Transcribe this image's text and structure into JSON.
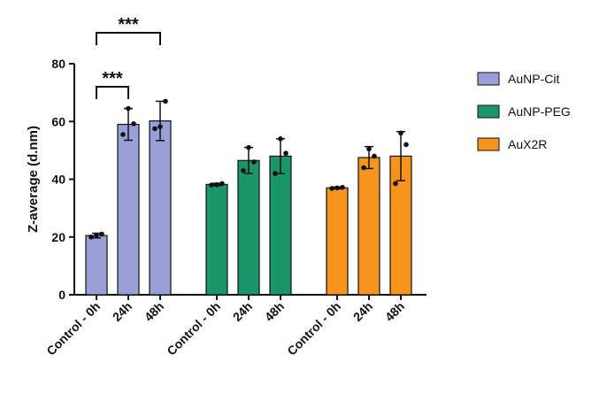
{
  "chart_data": {
    "type": "bar",
    "ylabel": "Z-average (d.nm)",
    "ylim": [
      0,
      80
    ],
    "yticks": [
      0,
      20,
      40,
      60,
      80
    ],
    "categories": [
      "Control - 0h",
      "24h",
      "48h"
    ],
    "groups": [
      {
        "name": "AuNP-Cit",
        "color": "#9b9fd8",
        "values": [
          20.5,
          59.0,
          60.2
        ],
        "errors": [
          0.8,
          5.5,
          6.8
        ],
        "points": [
          [
            20.0,
            21.0,
            20.6
          ],
          [
            55.5,
            59.2,
            64.5
          ],
          [
            57.5,
            67.0,
            58.2
          ]
        ]
      },
      {
        "name": "AuNP-PEG",
        "color": "#1b9668",
        "values": [
          38.2,
          46.5,
          48.0
        ],
        "errors": [
          0.4,
          4.5,
          6.0
        ],
        "points": [
          [
            38.0,
            38.5,
            38.1
          ],
          [
            43.0,
            46.0,
            51.0
          ],
          [
            42.0,
            49.0,
            54.0
          ]
        ]
      },
      {
        "name": "AuX2R",
        "color": "#f7941e",
        "values": [
          37.0,
          47.5,
          48.0
        ],
        "errors": [
          0.3,
          3.8,
          8.5
        ],
        "points": [
          [
            36.8,
            37.2,
            37.0
          ],
          [
            44.0,
            48.0,
            50.5
          ],
          [
            38.5,
            52.0,
            56.0
          ]
        ]
      }
    ],
    "legend": {
      "position": "right",
      "items": [
        "AuNP-Cit",
        "AuNP-PEG",
        "AuX2R"
      ]
    },
    "significance": [
      {
        "group": 0,
        "from": 0,
        "to": 1,
        "label": "***",
        "level": 3
      },
      {
        "group": 0,
        "from": 0,
        "to": 2,
        "label": "***",
        "level": 1
      }
    ],
    "grid": false
  }
}
